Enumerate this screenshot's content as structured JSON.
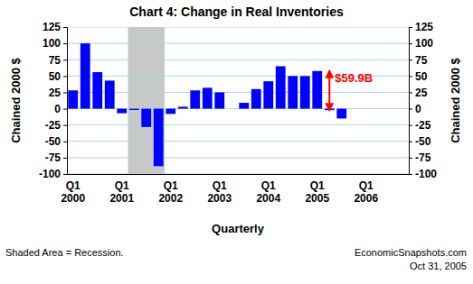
{
  "chart_data": {
    "type": "bar",
    "title": "Chart 4: Change in Real Inventories",
    "ylabel": "Chained 2000 $",
    "y2label": "Chained 2000 $",
    "xlabel": "Quarterly",
    "categories": [
      "Q1 2000",
      null,
      null,
      null,
      "Q1 2001",
      null,
      null,
      null,
      "Q1 2002",
      null,
      null,
      null,
      "Q1 2003",
      null,
      null,
      null,
      "Q1 2004",
      null,
      null,
      null,
      "Q1 2005",
      null,
      null,
      null,
      "Q1 2006",
      null,
      null,
      null
    ],
    "values": [
      28,
      100,
      56,
      43,
      -7,
      -2,
      -28,
      -88,
      -8,
      3,
      28,
      32,
      25,
      0,
      9,
      30,
      42,
      65,
      50,
      50,
      57.7,
      -2.2,
      -15,
      null,
      null,
      null,
      null,
      null
    ],
    "color": "#0000ff",
    "ylim": [
      -100,
      125
    ],
    "yticks": [
      -100,
      -75,
      -50,
      -25,
      0,
      25,
      50,
      75,
      100,
      125
    ],
    "y2lim": [
      -100,
      125
    ],
    "y2ticks": [
      -100,
      -75,
      -50,
      -25,
      0,
      25,
      50,
      75,
      100,
      125
    ],
    "grid": true,
    "recession": [
      5,
      7
    ],
    "note": "Shaded Area = Recession.",
    "source": "EconomicSnapshots.com",
    "date": "Oct 31, 2005",
    "annotations": [
      {
        "text": "$59.9B",
        "x": 21,
        "y_from": 57.7,
        "y_to": -2.2,
        "color": "#ff0000"
      }
    ]
  }
}
